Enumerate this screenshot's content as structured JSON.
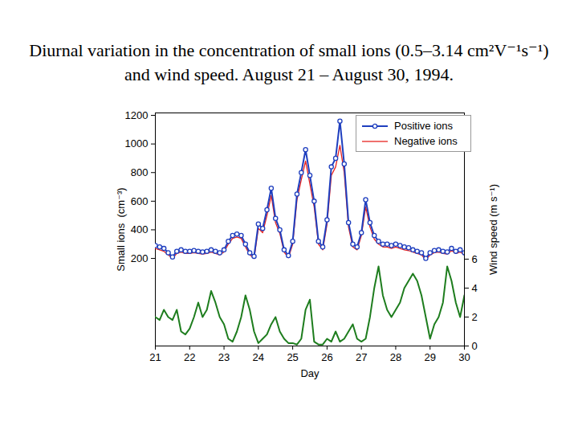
{
  "chart_data": {
    "type": "line",
    "title": "Diurnal variation in the concentration of small ions (0.5–3.14 cm²V⁻¹s⁻¹) and wind speed. August 21 – August 30, 1994.",
    "x_label": "Day",
    "y_label": "Small ions  (cm⁻³)",
    "y2_label": "Wind speed (m s⁻¹)",
    "x": [
      21.0,
      21.125,
      21.25,
      21.375,
      21.5,
      21.625,
      21.75,
      21.875,
      22.0,
      22.125,
      22.25,
      22.375,
      22.5,
      22.625,
      22.75,
      22.875,
      23.0,
      23.125,
      23.25,
      23.375,
      23.5,
      23.625,
      23.75,
      23.875,
      24.0,
      24.125,
      24.25,
      24.375,
      24.5,
      24.625,
      24.75,
      24.875,
      25.0,
      25.125,
      25.25,
      25.375,
      25.5,
      25.625,
      25.75,
      25.875,
      26.0,
      26.125,
      26.25,
      26.375,
      26.5,
      26.625,
      26.75,
      26.875,
      27.0,
      27.125,
      27.25,
      27.375,
      27.5,
      27.625,
      27.75,
      27.875,
      28.0,
      28.125,
      28.25,
      28.375,
      28.5,
      28.625,
      28.75,
      28.875,
      29.0,
      29.125,
      29.25,
      29.375,
      29.5,
      29.625,
      29.75,
      29.875,
      30.0
    ],
    "xlim": [
      21,
      30
    ],
    "xticks": [
      21,
      22,
      23,
      24,
      25,
      26,
      27,
      28,
      29,
      30
    ],
    "ylim": [
      -412,
      1217
    ],
    "yticks": [
      200,
      400,
      600,
      800,
      1000,
      1200
    ],
    "y2lim": [
      0,
      16.1
    ],
    "y2ticks": [
      0,
      2,
      4,
      6
    ],
    "legend": "upper right",
    "series": [
      {
        "name": "Positive ions",
        "color": "#1f3fbf",
        "marker": "circle",
        "values": [
          290,
          280,
          270,
          240,
          210,
          250,
          260,
          250,
          250,
          255,
          250,
          245,
          250,
          260,
          250,
          240,
          260,
          320,
          360,
          370,
          360,
          300,
          240,
          215,
          440,
          410,
          540,
          690,
          480,
          400,
          260,
          220,
          320,
          650,
          800,
          960,
          780,
          600,
          320,
          280,
          470,
          840,
          900,
          1160,
          860,
          450,
          300,
          280,
          380,
          610,
          450,
          360,
          320,
          300,
          300,
          290,
          300,
          290,
          280,
          275,
          260,
          250,
          240,
          200,
          240,
          255,
          260,
          250,
          245,
          270,
          250,
          260,
          240
        ]
      },
      {
        "name": "Negative ions",
        "color": "#e8231f",
        "values": [
          270,
          260,
          250,
          225,
          200,
          235,
          245,
          235,
          235,
          240,
          235,
          230,
          235,
          245,
          235,
          225,
          245,
          300,
          340,
          350,
          340,
          280,
          225,
          200,
          410,
          380,
          500,
          640,
          450,
          375,
          245,
          205,
          300,
          610,
          750,
          880,
          720,
          560,
          300,
          260,
          440,
          780,
          840,
          990,
          800,
          420,
          280,
          260,
          360,
          560,
          420,
          335,
          300,
          280,
          280,
          270,
          280,
          270,
          260,
          255,
          245,
          235,
          225,
          190,
          225,
          240,
          245,
          235,
          230,
          255,
          235,
          245,
          225
        ]
      },
      {
        "color": "#1e7d1e",
        "axis": "y2",
        "values": [
          2.0,
          1.8,
          2.5,
          2.0,
          1.8,
          2.5,
          1.0,
          0.8,
          1.2,
          2.0,
          3.0,
          2.0,
          2.5,
          3.8,
          3.0,
          2.0,
          1.5,
          0.5,
          0.3,
          1.0,
          2.0,
          3.5,
          2.5,
          1.0,
          0.2,
          0.5,
          0.8,
          1.5,
          2.0,
          1.0,
          0.5,
          0.2,
          0.2,
          0.1,
          0.5,
          2.5,
          3.2,
          0.3,
          0.1,
          0.1,
          0.5,
          0.3,
          1.0,
          0.3,
          0.5,
          1.0,
          1.5,
          0.5,
          0.3,
          0.5,
          2.0,
          4.0,
          5.5,
          3.5,
          2.5,
          2.0,
          2.5,
          3.0,
          4.0,
          4.5,
          5.0,
          4.5,
          3.5,
          2.0,
          0.5,
          1.5,
          2.0,
          3.0,
          5.5,
          4.5,
          3.0,
          2.0,
          3.5
        ]
      }
    ]
  }
}
